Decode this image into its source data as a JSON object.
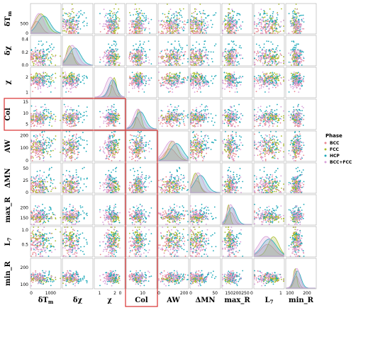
{
  "chart_data": {
    "type": "scatter",
    "title": "",
    "variables": [
      {
        "key": "dTm",
        "label": "δT",
        "sub": "m",
        "range": [
          0,
          1500
        ],
        "ticks": [
          0,
          500,
          1000
        ],
        "yticks": [
          0,
          500
        ]
      },
      {
        "key": "dchi",
        "label": "δχ",
        "sub": "",
        "range": [
          0,
          0.45
        ],
        "ticks": [],
        "yticks": [
          0.0,
          0.2,
          0.4
        ]
      },
      {
        "key": "chi",
        "label": "χ",
        "sub": "",
        "range": [
          0.7,
          2.6
        ],
        "ticks": [
          1,
          2
        ],
        "yticks": [
          1,
          2
        ]
      },
      {
        "key": "col",
        "label": "Col",
        "sub": "",
        "range": [
          3,
          16
        ],
        "ticks": [
          0,
          10
        ],
        "yticks": [
          5,
          10,
          15
        ]
      },
      {
        "key": "aw",
        "label": "AW",
        "sub": "",
        "range": [
          0,
          230
        ],
        "ticks": [
          0,
          200
        ],
        "yticks": [
          0,
          100,
          200
        ]
      },
      {
        "key": "dmn",
        "label": "ΔMN",
        "sub": "",
        "range": [
          0,
          60
        ],
        "ticks": [
          0,
          50
        ],
        "yticks": [
          0,
          25,
          50
        ]
      },
      {
        "key": "maxr",
        "label": "max_R",
        "sub": "",
        "range": [
          120,
          260
        ],
        "ticks": [
          150,
          200,
          250
        ],
        "yticks": [
          150,
          200
        ]
      },
      {
        "key": "l7",
        "label": "L",
        "sub": "7",
        "range": [
          0.1,
          1.1
        ],
        "ticks": [
          0,
          1
        ],
        "yticks": [
          0.5,
          1.0
        ]
      },
      {
        "key": "minr",
        "label": "min_R",
        "sub": "",
        "range": [
          80,
          250
        ],
        "ticks": [
          100,
          200
        ],
        "yticks": [
          100,
          200
        ]
      }
    ],
    "xtick_labels_printed": [
      [
        "0",
        "1000"
      ],
      [],
      [
        "1",
        "2"
      ],
      [
        "0",
        "10"
      ],
      [
        "0",
        "200"
      ],
      [
        "0",
        "50"
      ],
      [
        "150200250"
      ],
      [
        "0",
        "1"
      ],
      [
        "100",
        "200"
      ]
    ],
    "ytick_labels_printed": [
      [
        "0",
        "500"
      ],
      [
        "0.0",
        "0.2",
        "0.4"
      ],
      [
        "1",
        "2"
      ],
      [
        "5",
        "10",
        "15"
      ],
      [
        "0",
        "100",
        "200"
      ],
      [
        "0",
        "25",
        "50"
      ],
      [
        "150",
        "200"
      ],
      [
        "0.5",
        "1.0"
      ],
      [
        "100",
        "200"
      ]
    ],
    "series": [
      {
        "name": "BCC",
        "color": "#e8858d"
      },
      {
        "name": "FCC",
        "color": "#a8bb2a"
      },
      {
        "name": "HCP",
        "color": "#1aa8b8"
      },
      {
        "name": "BCC+FCC",
        "color": "#d79ed8"
      }
    ],
    "legend": {
      "title": "Phase",
      "placement": "right"
    },
    "highlight": {
      "row_variable": "Col",
      "column_variable": "Col",
      "color": "#d93030"
    },
    "diagonal": "kde",
    "off_diagonal": "scatter"
  }
}
